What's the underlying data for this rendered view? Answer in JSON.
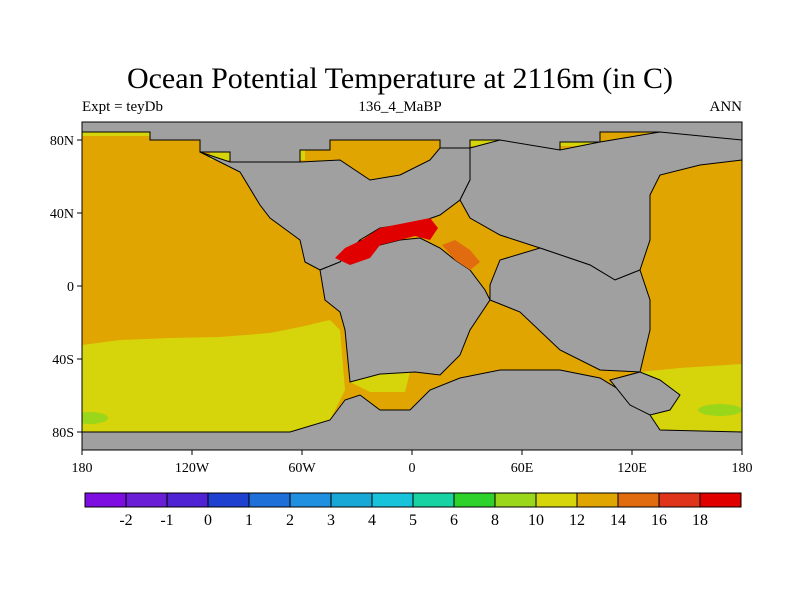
{
  "title": "Ocean Potential Temperature at 2116m (in C)",
  "subtitle_left": "Expt = teyDb",
  "subtitle_center": "136_4_MaBP",
  "subtitle_right": "ANN",
  "x_ticks": [
    "180",
    "120W",
    "60W",
    "0",
    "60E",
    "120E",
    "180"
  ],
  "y_ticks": [
    "80N",
    "40N",
    "0",
    "40S",
    "80S"
  ],
  "colorbar": {
    "labels": [
      "-2",
      "-1",
      "0",
      "1",
      "2",
      "3",
      "4",
      "5",
      "6",
      "8",
      "10",
      "12",
      "14",
      "16",
      "18"
    ],
    "colors": [
      "#7d0de0",
      "#6a1ed6",
      "#4f22d4",
      "#1e40d0",
      "#1f6fd8",
      "#1f8fe0",
      "#17a8d8",
      "#16c3da",
      "#18d2a3",
      "#2fd22a",
      "#9ad61a",
      "#d6d50c",
      "#e0a500",
      "#e06c0f",
      "#e0341a",
      "#e00000"
    ]
  },
  "colors": {
    "land": "#a0a0a0",
    "temp_10_12": "#d6d50c",
    "temp_12_14": "#e0a500",
    "temp_14_16": "#e06c0f",
    "temp_18_plus": "#e00000",
    "temp_8_10": "#9ad61a"
  },
  "chart_data": {
    "type": "heatmap",
    "map_projection": "cylindrical equidistant",
    "lon_range": [
      -180,
      180
    ],
    "lat_range": [
      -90,
      90
    ],
    "variable": "Ocean Potential Temperature",
    "units": "C",
    "depth": "2116m",
    "contour_levels": [
      -2,
      -1,
      0,
      1,
      2,
      3,
      4,
      5,
      6,
      8,
      10,
      12,
      14,
      16,
      18
    ]
  }
}
